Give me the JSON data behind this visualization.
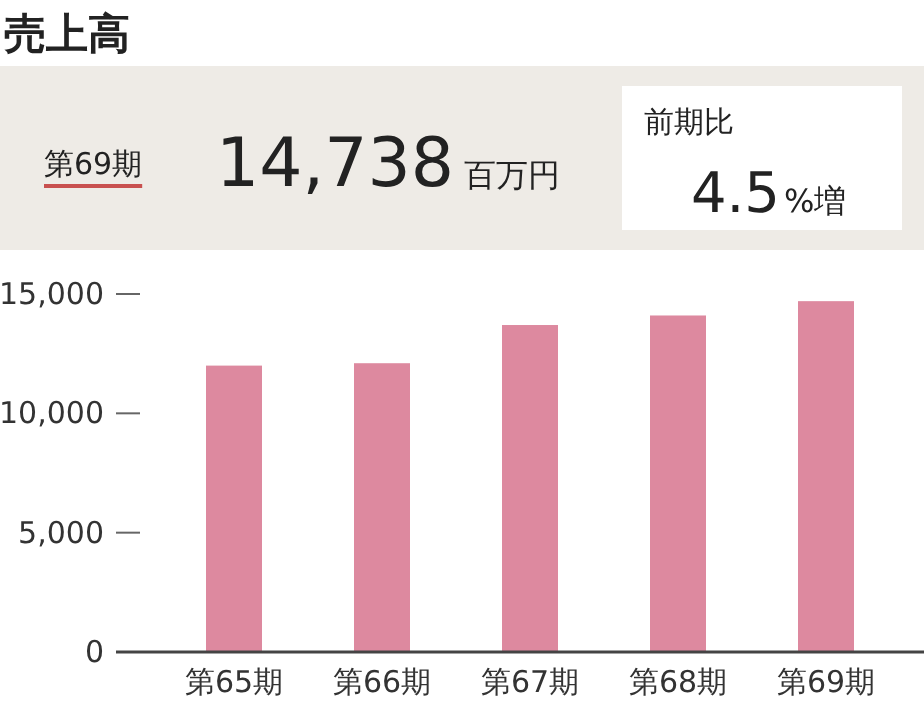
{
  "chart_data": {
    "type": "bar",
    "title": "売上高",
    "annotations": [
      "第69期",
      "14,738",
      "百万円",
      "前期比",
      "4.5",
      "%増"
    ],
    "categories": [
      "第65期",
      "第66期",
      "第67期",
      "第68期",
      "第69期"
    ],
    "values": [
      12000,
      12100,
      13700,
      14100,
      14700
    ],
    "color": "#dd899f",
    "ylim": [
      0,
      15000
    ],
    "yticks": [
      {
        "value": 0,
        "label": "0"
      },
      {
        "value": 5000,
        "label": "5,000"
      },
      {
        "value": 10000,
        "label": "10,000"
      },
      {
        "value": 15000,
        "label": "15,000"
      }
    ],
    "grid": false,
    "legend": false
  }
}
